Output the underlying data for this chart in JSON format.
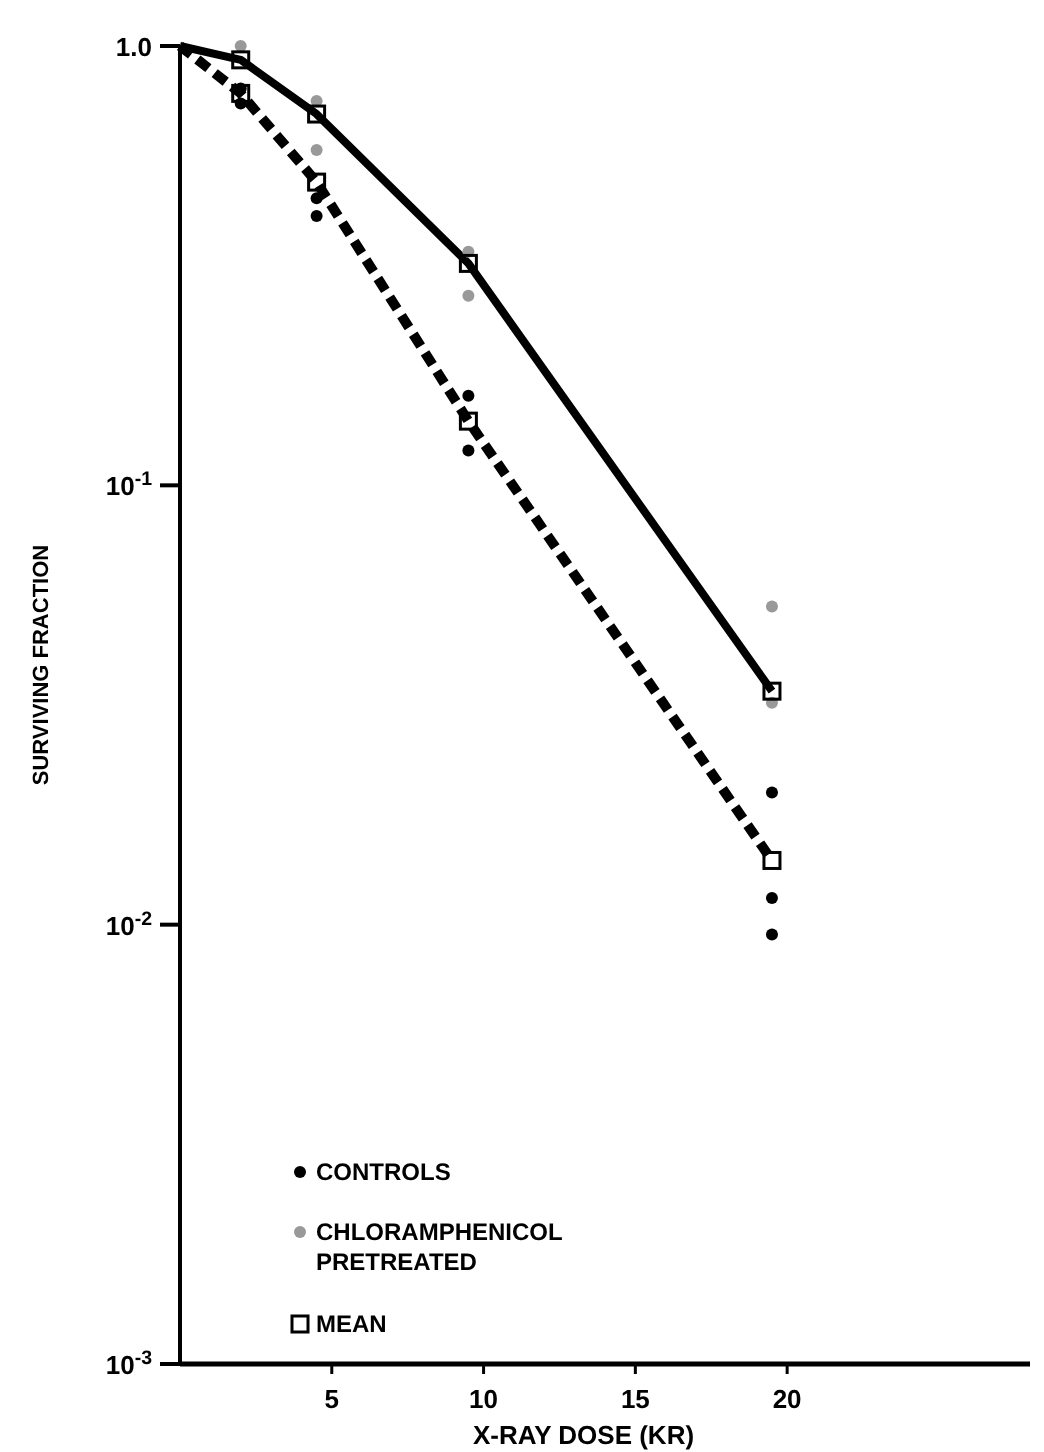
{
  "chart_data": {
    "type": "line",
    "xlabel": "X-RAY DOSE (KR)",
    "ylabel": "SURVIVING FRACTION",
    "log": "y",
    "xlim": [
      0,
      28
    ],
    "ylim": [
      0.001,
      1
    ],
    "xticks": [
      5,
      10,
      15,
      20
    ],
    "yticks": [
      {
        "value": 1,
        "label": "1.0"
      },
      {
        "value": 0.1,
        "label": "10$^{-1}$"
      },
      {
        "value": 0.01,
        "label": "10$^{-2}$"
      },
      {
        "value": 0.001,
        "label": "10$^{-3}$"
      }
    ],
    "legend": "bottom left",
    "grid": false,
    "series": [
      {
        "color": "#000000",
        "line_style": "dashed",
        "x": [
          0,
          2,
          4.5,
          9.5,
          19.5
        ],
        "values": [
          1,
          0.78,
          0.49,
          0.14,
          0.014
        ]
      },
      {
        "color": "#000000",
        "line_style": "solid",
        "x": [
          0,
          2,
          4.5,
          9.5,
          19.5
        ],
        "values": [
          1,
          0.93,
          0.7,
          0.32,
          0.034
        ]
      },
      {
        "type": "scatter",
        "name": "CONTROLS",
        "color": "#000000",
        "marker": "circle",
        "x": [
          2,
          2,
          4.5,
          4.5,
          9.5,
          9.5,
          19.5,
          19.5,
          19.5
        ],
        "values": [
          0.8,
          0.74,
          0.45,
          0.41,
          0.16,
          0.12,
          0.02,
          0.0115,
          0.0095
        ]
      },
      {
        "type": "scatter",
        "name": "CHLORAMPHENICOL PRETREATED",
        "color": "#999999",
        "marker": "circle",
        "x": [
          2,
          4.5,
          4.5,
          9.5,
          9.5,
          19.5,
          19.5
        ],
        "values": [
          1,
          0.75,
          0.58,
          0.34,
          0.27,
          0.053,
          0.032
        ]
      },
      {
        "type": "scatter",
        "name": "MEAN",
        "color": "#000000",
        "marker": "square",
        "x": [
          2,
          2,
          4.5,
          4.5,
          9.5,
          9.5,
          19.5,
          19.5
        ],
        "values": [
          0.93,
          0.78,
          0.7,
          0.49,
          0.32,
          0.14,
          0.034,
          0.014
        ]
      }
    ]
  }
}
